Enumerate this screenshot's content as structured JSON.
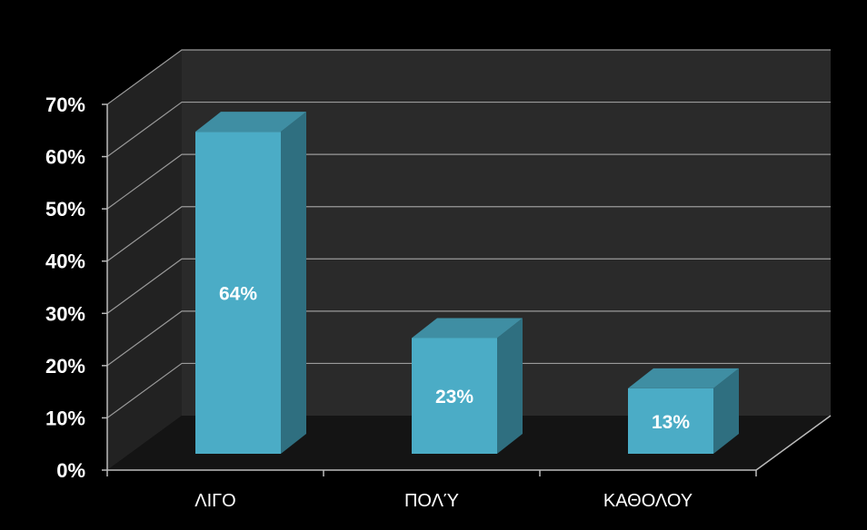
{
  "chart_data": {
    "type": "bar",
    "style": "3d-column",
    "categories": [
      "ΛΙΓΟ",
      "ΠΟΛΎ",
      "ΚΑΘΟΛΟΥ"
    ],
    "values": [
      64,
      23,
      13
    ],
    "data_labels": [
      "64%",
      "23%",
      "13%"
    ],
    "y_tick_labels": [
      "0%",
      "10%",
      "20%",
      "30%",
      "40%",
      "50%",
      "60%",
      "70%"
    ],
    "ylim": [
      0,
      70
    ],
    "grid": true,
    "legend": "none",
    "colors": {
      "background": "#000000",
      "wall": "#2a2a2a",
      "floor": "#141414",
      "grid": "#9a9a9a",
      "bar_front": "#4bacc6",
      "bar_top": "#3f8ea3",
      "bar_side": "#2f6f80"
    }
  }
}
